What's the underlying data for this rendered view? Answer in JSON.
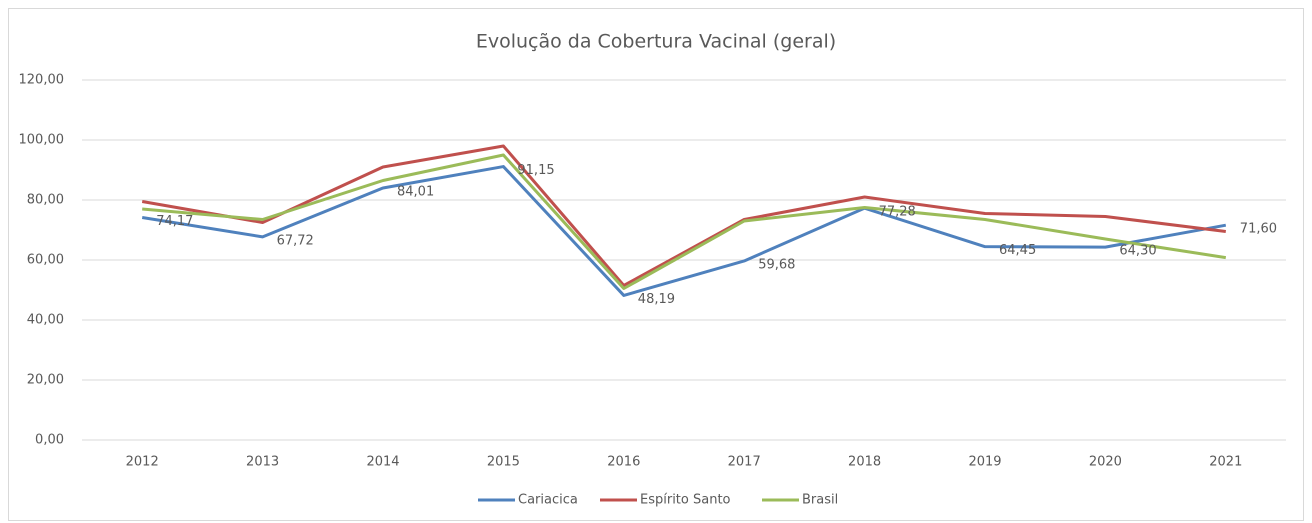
{
  "chart_data": {
    "type": "line",
    "title": "Evolução da Cobertura Vacinal (geral)",
    "categories": [
      "2012",
      "2013",
      "2014",
      "2015",
      "2016",
      "2017",
      "2018",
      "2019",
      "2020",
      "2021"
    ],
    "series": [
      {
        "name": "Cariacica",
        "color": "#4f81bd",
        "values": [
          74.17,
          67.72,
          84.01,
          91.15,
          48.19,
          59.68,
          77.28,
          64.45,
          64.3,
          71.6
        ],
        "value_labels": [
          "74,17",
          "67,72",
          "84,01",
          "91,15",
          "48,19",
          "59,68",
          "77,28",
          "64,45",
          "64,30",
          "71,60"
        ]
      },
      {
        "name": "Espírito Santo",
        "color": "#c0504d",
        "values": [
          79.5,
          72.5,
          91,
          98,
          51.5,
          73.5,
          81,
          75.5,
          74.5,
          69.5
        ]
      },
      {
        "name": "Brasil",
        "color": "#9bbb59",
        "values": [
          77,
          73.5,
          86.5,
          95,
          50.5,
          73,
          77.5,
          73.5,
          67,
          60.8
        ]
      }
    ],
    "ylim": [
      0,
      120
    ],
    "yticks": [
      {
        "value": 0,
        "label": "0,00"
      },
      {
        "value": 20,
        "label": "20,00"
      },
      {
        "value": 40,
        "label": "40,00"
      },
      {
        "value": 60,
        "label": "60,00"
      },
      {
        "value": 80,
        "label": "80,00"
      },
      {
        "value": 100,
        "label": "100,00"
      },
      {
        "value": 120,
        "label": "120,00"
      }
    ],
    "grid": true
  }
}
